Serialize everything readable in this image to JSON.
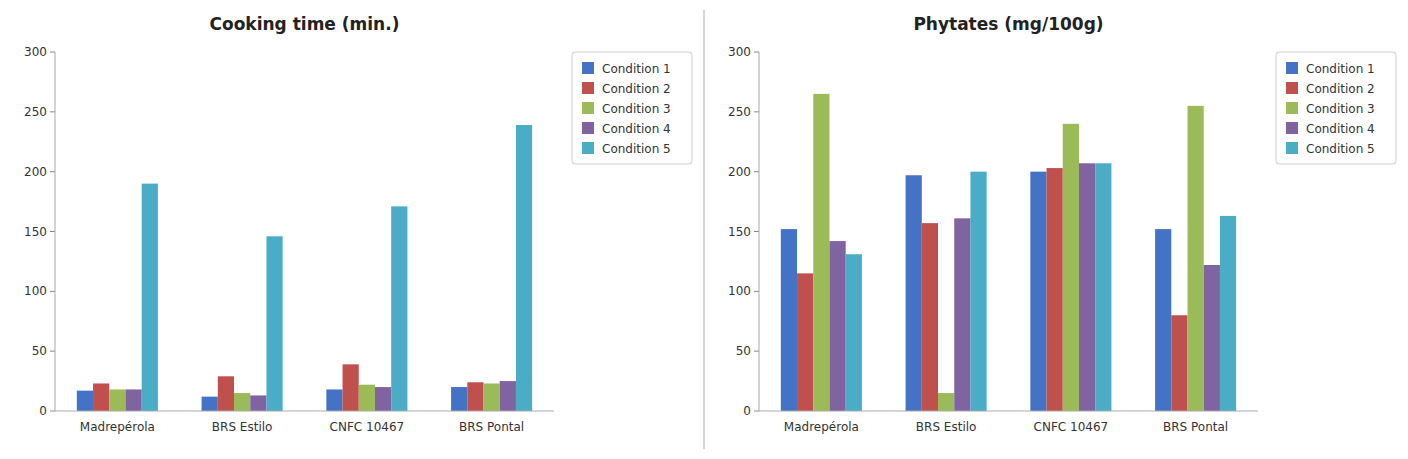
{
  "chart_data": [
    {
      "type": "bar",
      "title": "Cooking time (min.)",
      "categories": [
        "Madrepérola",
        "BRS Estilo",
        "CNFC 10467",
        "BRS Pontal"
      ],
      "series": [
        {
          "name": "Condition 1",
          "color": "#4472C4",
          "values": [
            17,
            12,
            18,
            20
          ]
        },
        {
          "name": "Condition 2",
          "color": "#C0504D",
          "values": [
            23,
            29,
            39,
            24
          ]
        },
        {
          "name": "Condition 3",
          "color": "#9BBB59",
          "values": [
            18,
            15,
            22,
            23
          ]
        },
        {
          "name": "Condition 4",
          "color": "#8064A2",
          "values": [
            18,
            13,
            20,
            25
          ]
        },
        {
          "name": "Condition 5",
          "color": "#4BACC6",
          "values": [
            190,
            146,
            171,
            239
          ]
        }
      ],
      "ylim": [
        0,
        300
      ],
      "yticks": [
        0,
        50,
        100,
        150,
        200,
        250,
        300
      ],
      "grid": false,
      "legend": "right"
    },
    {
      "type": "bar",
      "title": "Phytates (mg/100g)",
      "categories": [
        "Madrepérola",
        "BRS Estilo",
        "CNFC 10467",
        "BRS Pontal"
      ],
      "series": [
        {
          "name": "Condition 1",
          "color": "#4472C4",
          "values": [
            152,
            197,
            200,
            152
          ]
        },
        {
          "name": "Condition 2",
          "color": "#C0504D",
          "values": [
            115,
            157,
            203,
            80
          ]
        },
        {
          "name": "Condition 3",
          "color": "#9BBB59",
          "values": [
            265,
            15,
            240,
            255
          ]
        },
        {
          "name": "Condition 4",
          "color": "#8064A2",
          "values": [
            142,
            161,
            207,
            122
          ]
        },
        {
          "name": "Condition 5",
          "color": "#4BACC6",
          "values": [
            131,
            200,
            207,
            163
          ]
        }
      ],
      "ylim": [
        0,
        300
      ],
      "yticks": [
        0,
        50,
        100,
        150,
        200,
        250,
        300
      ],
      "grid": false,
      "legend": "right"
    }
  ]
}
